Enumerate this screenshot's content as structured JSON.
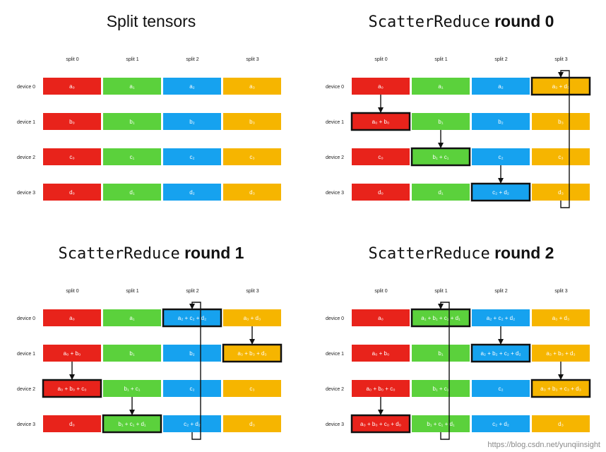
{
  "colors": {
    "split0": "#e8231b",
    "split1": "#5bd13c",
    "split2": "#16a2ef",
    "split3": "#f6b500"
  },
  "watermark": "https://blog.csdn.net/yunqiinsight",
  "panels": [
    {
      "title_parts": [
        {
          "text": "Split tensors",
          "style": "sans"
        }
      ],
      "split_headers": [
        "split 0",
        "split 1",
        "split 2",
        "split 3"
      ],
      "device_labels": [
        "device 0",
        "device 1",
        "device 2",
        "device 3"
      ],
      "cells": [
        [
          "a₀",
          "a₁",
          "a₂",
          "a₃"
        ],
        [
          "b₀",
          "b₁",
          "b₂",
          "b₃"
        ],
        [
          "c₀",
          "c₁",
          "c₂",
          "c₃"
        ],
        [
          "d₀",
          "d₁",
          "d₂",
          "d₃"
        ]
      ],
      "highlighted": [],
      "arrows": []
    },
    {
      "title_parts": [
        {
          "text": "ScatterReduce",
          "style": "mono"
        },
        {
          "text": " round 0",
          "style": "bold"
        }
      ],
      "split_headers": [
        "split 0",
        "split 1",
        "split 2",
        "split 3"
      ],
      "device_labels": [
        "device 0",
        "device 1",
        "device 2",
        "device 3"
      ],
      "cells": [
        [
          "a₀",
          "a₁",
          "a₂",
          "a₃ + d₃"
        ],
        [
          "a₀ + b₀",
          "b₁",
          "b₂",
          "b₃"
        ],
        [
          "c₀",
          "b₁ + c₁",
          "c₂",
          "c₃"
        ],
        [
          "d₀",
          "d₁",
          "c₂ + d₂",
          "d₃"
        ]
      ],
      "highlighted": [
        [
          0,
          3
        ],
        [
          1,
          0
        ],
        [
          2,
          1
        ],
        [
          3,
          2
        ]
      ],
      "arrows": [
        {
          "col": 0,
          "from": 0,
          "to": 1
        },
        {
          "col": 1,
          "from": 1,
          "to": 2
        },
        {
          "col": 2,
          "from": 2,
          "to": 3
        },
        {
          "col": 3,
          "from": 3,
          "to": 0
        }
      ]
    },
    {
      "title_parts": [
        {
          "text": "ScatterReduce",
          "style": "mono"
        },
        {
          "text": " round 1",
          "style": "bold"
        }
      ],
      "split_headers": [
        "split 0",
        "split 1",
        "split 2",
        "split 3"
      ],
      "device_labels": [
        "device 0",
        "device 1",
        "device 2",
        "device 3"
      ],
      "cells": [
        [
          "a₀",
          "a₁",
          "a₂ + c₂ + d₂",
          "a₃ + d₃"
        ],
        [
          "a₀ + b₀",
          "b₁",
          "b₂",
          "a₃ + b₃ + d₃"
        ],
        [
          "a₀ + b₀ + c₀",
          "b₁ + c₁",
          "c₂",
          "c₃"
        ],
        [
          "d₀",
          "b₁ + c₁ + d₁",
          "c₂ + d₂",
          "d₃"
        ]
      ],
      "highlighted": [
        [
          0,
          2
        ],
        [
          1,
          3
        ],
        [
          2,
          0
        ],
        [
          3,
          1
        ]
      ],
      "arrows": [
        {
          "col": 0,
          "from": 1,
          "to": 2
        },
        {
          "col": 1,
          "from": 2,
          "to": 3
        },
        {
          "col": 2,
          "from": 3,
          "to": 0
        },
        {
          "col": 3,
          "from": 0,
          "to": 1
        }
      ]
    },
    {
      "title_parts": [
        {
          "text": "ScatterReduce",
          "style": "mono"
        },
        {
          "text": " round 2",
          "style": "bold"
        }
      ],
      "split_headers": [
        "split 0",
        "split 1",
        "split 2",
        "split 3"
      ],
      "device_labels": [
        "device 0",
        "device 1",
        "device 2",
        "device 3"
      ],
      "cells": [
        [
          "a₀",
          "a₁ + b₁ + c₁ + d₁",
          "a₂ + c₂ + d₂",
          "a₃ + d₃"
        ],
        [
          "a₀ + b₀",
          "b₁",
          "a₂ + b₂ + c₂ + d₂",
          "a₃ + b₃ + d₃"
        ],
        [
          "a₀ + b₀ + c₀",
          "b₁ + c₁",
          "c₂",
          "a₃ + b₃ + c₃ + d₃"
        ],
        [
          "a₀ + b₀ + c₀ + d₀",
          "b₁ + c₁ + d₁",
          "c₂ + d₂",
          "d₃"
        ]
      ],
      "highlighted": [
        [
          0,
          1
        ],
        [
          1,
          2
        ],
        [
          2,
          3
        ],
        [
          3,
          0
        ]
      ],
      "arrows": [
        {
          "col": 0,
          "from": 2,
          "to": 3
        },
        {
          "col": 1,
          "from": 3,
          "to": 0
        },
        {
          "col": 2,
          "from": 0,
          "to": 1
        },
        {
          "col": 3,
          "from": 1,
          "to": 2
        }
      ]
    }
  ]
}
